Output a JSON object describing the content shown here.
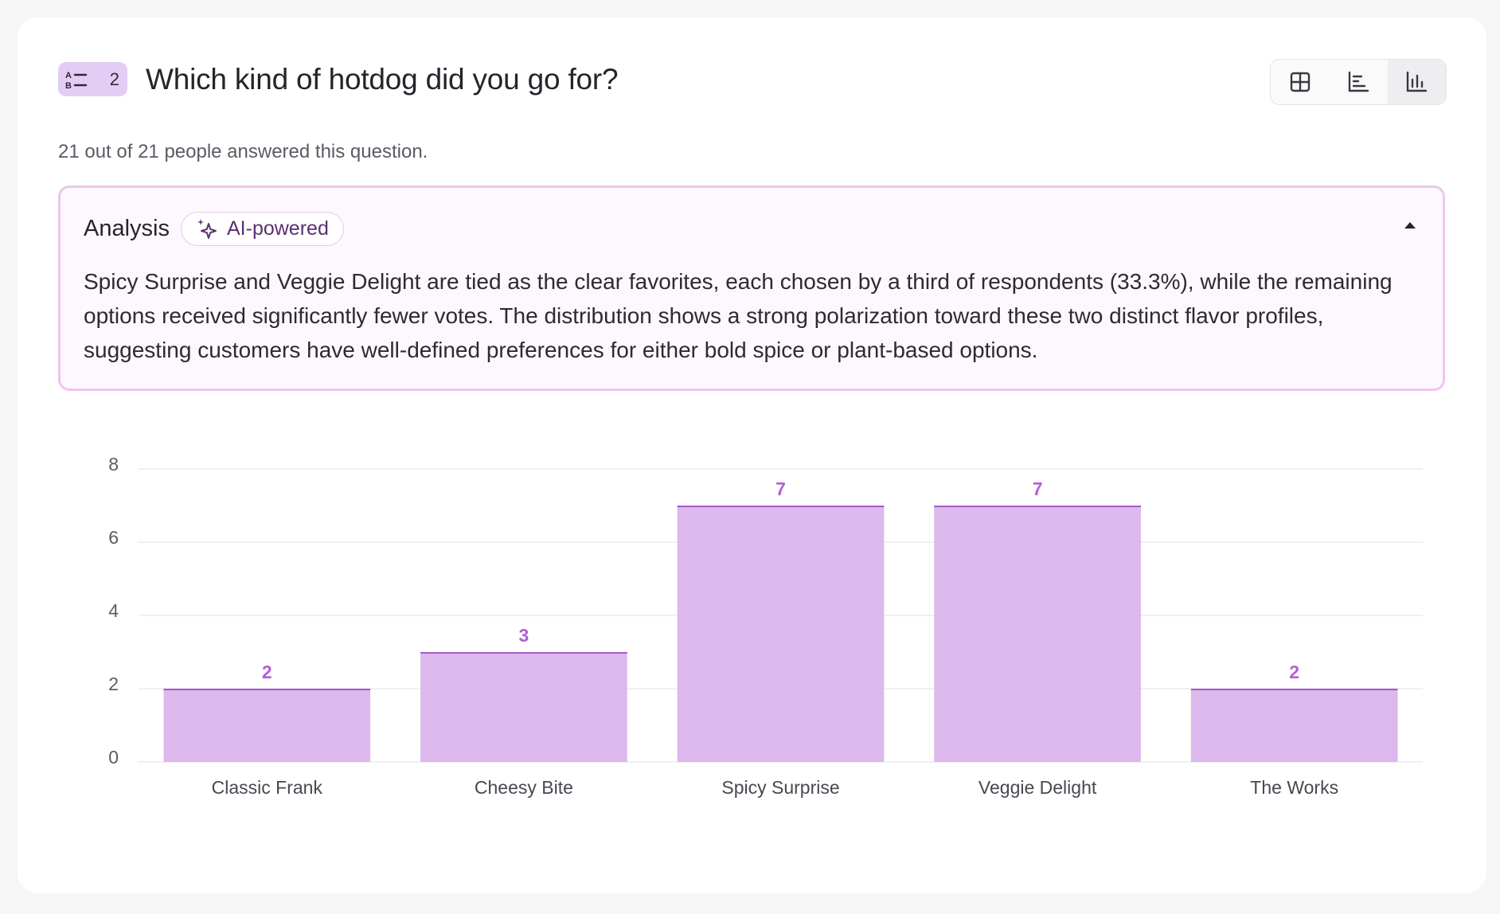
{
  "question": {
    "badge_number": "2",
    "title": "Which kind of hotdog did you go for?",
    "subtitle": "21 out of 21 people answered this question."
  },
  "view_toggle": {
    "options": [
      "table-view",
      "horizontal-bar-view",
      "vertical-bar-view"
    ],
    "active": "vertical-bar-view"
  },
  "analysis": {
    "title": "Analysis",
    "badge_label": "AI-powered",
    "expanded": true,
    "text": "Spicy Surprise and Veggie Delight are tied as the clear favorites, each chosen by a third of respondents (33.3%), while the remaining options received significantly fewer votes. The distribution shows a strong polarization toward these two distinct flavor profiles, suggesting customers have well-defined preferences for either bold spice or plant-based options."
  },
  "colors": {
    "bar_fill": "#dcb8ec",
    "bar_top": "#a659c4",
    "value_label": "#b45fd2",
    "accent_border": "#ecc6f0"
  },
  "chart_data": {
    "type": "bar",
    "categories": [
      "Classic Frank",
      "Cheesy Bite",
      "Spicy Surprise",
      "Veggie Delight",
      "The Works"
    ],
    "values": [
      2,
      3,
      7,
      7,
      2
    ],
    "yticks": [
      0,
      2,
      4,
      6,
      8
    ],
    "ylim": [
      0,
      8
    ],
    "grid": true,
    "data_labels": true
  }
}
